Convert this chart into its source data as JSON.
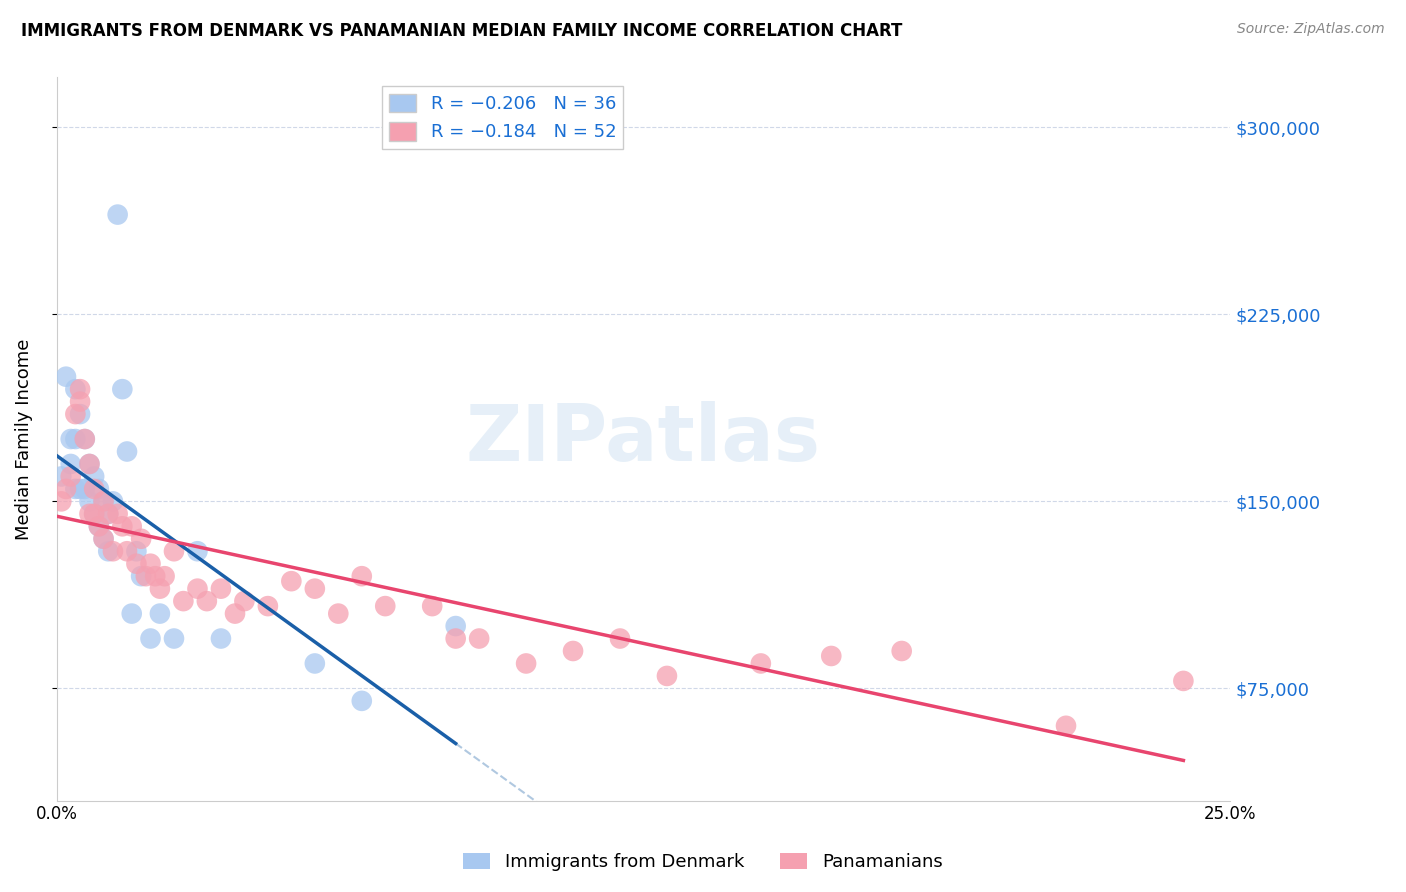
{
  "title": "IMMIGRANTS FROM DENMARK VS PANAMANIAN MEDIAN FAMILY INCOME CORRELATION CHART",
  "source": "Source: ZipAtlas.com",
  "ylabel": "Median Family Income",
  "yticks": [
    75000,
    150000,
    225000,
    300000
  ],
  "ytick_labels": [
    "$75,000",
    "$150,000",
    "$225,000",
    "$300,000"
  ],
  "xlim": [
    0.0,
    0.25
  ],
  "ylim": [
    30000,
    320000
  ],
  "legend_text_blue": "R = −0.206   N = 36",
  "legend_text_pink": "R = −0.184   N = 52",
  "denmark_color": "#a8c8f0",
  "panama_color": "#f5a0b0",
  "trend_blue": "#1a5fa8",
  "trend_pink": "#e8456e",
  "trend_dashed_color": "#b0c8e0",
  "watermark": "ZIPatlas",
  "denmark_x": [
    0.001,
    0.002,
    0.003,
    0.003,
    0.004,
    0.004,
    0.004,
    0.005,
    0.005,
    0.006,
    0.006,
    0.007,
    0.007,
    0.008,
    0.008,
    0.009,
    0.009,
    0.01,
    0.01,
    0.011,
    0.011,
    0.012,
    0.013,
    0.014,
    0.015,
    0.016,
    0.017,
    0.018,
    0.02,
    0.022,
    0.025,
    0.03,
    0.035,
    0.055,
    0.065,
    0.085
  ],
  "denmark_y": [
    160000,
    200000,
    175000,
    165000,
    195000,
    175000,
    155000,
    185000,
    155000,
    175000,
    155000,
    165000,
    150000,
    160000,
    145000,
    155000,
    140000,
    150000,
    135000,
    145000,
    130000,
    150000,
    265000,
    195000,
    170000,
    105000,
    130000,
    120000,
    95000,
    105000,
    95000,
    130000,
    95000,
    85000,
    70000,
    100000
  ],
  "panama_x": [
    0.001,
    0.002,
    0.003,
    0.004,
    0.005,
    0.005,
    0.006,
    0.007,
    0.007,
    0.008,
    0.008,
    0.009,
    0.01,
    0.01,
    0.011,
    0.012,
    0.013,
    0.014,
    0.015,
    0.016,
    0.017,
    0.018,
    0.019,
    0.02,
    0.021,
    0.022,
    0.023,
    0.025,
    0.027,
    0.03,
    0.032,
    0.035,
    0.038,
    0.04,
    0.045,
    0.05,
    0.055,
    0.06,
    0.065,
    0.07,
    0.08,
    0.085,
    0.09,
    0.1,
    0.11,
    0.12,
    0.13,
    0.15,
    0.165,
    0.18,
    0.215,
    0.24
  ],
  "panama_y": [
    150000,
    155000,
    160000,
    185000,
    190000,
    195000,
    175000,
    165000,
    145000,
    155000,
    145000,
    140000,
    150000,
    135000,
    145000,
    130000,
    145000,
    140000,
    130000,
    140000,
    125000,
    135000,
    120000,
    125000,
    120000,
    115000,
    120000,
    130000,
    110000,
    115000,
    110000,
    115000,
    105000,
    110000,
    108000,
    118000,
    115000,
    105000,
    120000,
    108000,
    108000,
    95000,
    95000,
    85000,
    90000,
    95000,
    80000,
    85000,
    88000,
    90000,
    60000,
    78000
  ]
}
